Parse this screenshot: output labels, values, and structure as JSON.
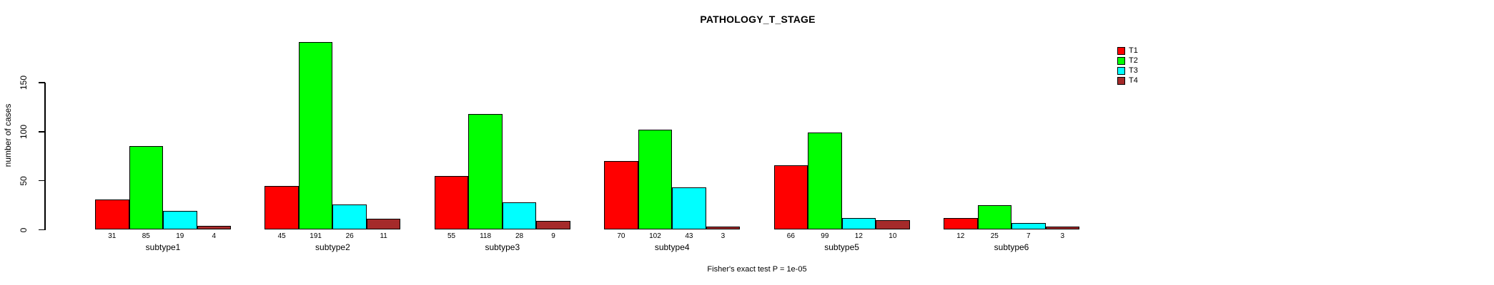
{
  "chart_data": {
    "type": "bar",
    "title": "PATHOLOGY_T_STAGE",
    "ylabel": "number of cases",
    "xlabel": "",
    "categories": [
      "subtype1",
      "subtype2",
      "subtype3",
      "subtype4",
      "subtype5",
      "subtype6"
    ],
    "series": [
      {
        "name": "T1",
        "color": "#FF0000",
        "values": [
          31,
          45,
          55,
          70,
          66,
          12
        ]
      },
      {
        "name": "T2",
        "color": "#00FF00",
        "values": [
          85,
          191,
          118,
          102,
          99,
          25
        ]
      },
      {
        "name": "T3",
        "color": "#00FFFF",
        "values": [
          19,
          26,
          28,
          43,
          12,
          7
        ]
      },
      {
        "name": "T4",
        "color": "#A52A2A",
        "values": [
          4,
          11,
          9,
          3,
          10,
          3
        ]
      }
    ],
    "yticks": [
      0,
      50,
      100,
      150
    ],
    "ylim": [
      0,
      195
    ],
    "grid": false,
    "legend_position": "right",
    "bar_value_labels": true,
    "annotation": "Fisher's exact test P = 1e-05",
    "colors": {
      "background": "#FFFFFF",
      "axis": "#000000",
      "text": "#000000"
    }
  }
}
